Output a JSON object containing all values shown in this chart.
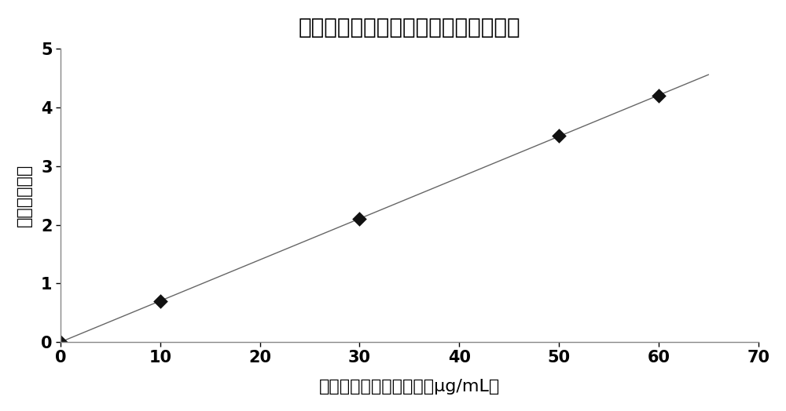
{
  "title": "钛铌合金中铌元素含量测定的标准曲线",
  "xlabel": "标准曲线中铌元素浓度（μg/mL）",
  "ylabel": "相对发射强度",
  "x_data": [
    0,
    10,
    30,
    50,
    60
  ],
  "y_data": [
    0,
    0.7,
    2.1,
    3.52,
    4.2
  ],
  "xlim": [
    0,
    70
  ],
  "ylim": [
    0,
    5
  ],
  "xticks": [
    0,
    10,
    20,
    30,
    40,
    50,
    60,
    70
  ],
  "yticks": [
    0,
    1,
    2,
    3,
    4,
    5
  ],
  "line_color": "#666666",
  "marker_color": "#111111",
  "title_fontsize": 20,
  "label_fontsize": 16,
  "tick_fontsize": 15,
  "background_color": "#ffffff"
}
